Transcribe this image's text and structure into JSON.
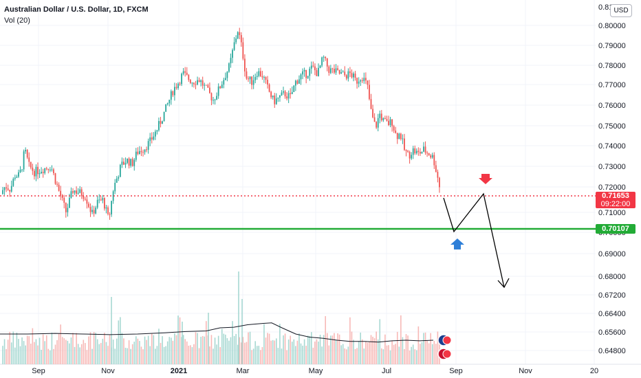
{
  "header": {
    "title": "Australian Dollar / U.S. Dollar, 1D, FXCM",
    "volume_label": "Vol (20)",
    "currency_badge": "USD"
  },
  "price_tags": {
    "last_price": "0.71653",
    "countdown": "09:22:00",
    "support": "0.70107"
  },
  "colors": {
    "up": "#26a69a",
    "down": "#ef5350",
    "support_line": "#22ab36",
    "last_price_line": "#f23645",
    "arrow_down": "#f23645",
    "arrow_up": "#2e7fd8",
    "volume_ma": "#131722",
    "projection": "#000000"
  },
  "chart_data": {
    "type": "candlestick",
    "title": "Australian Dollar / U.S. Dollar, 1D, FXCM",
    "y_axis": {
      "ticks": [
        "0.80000",
        "0.79000",
        "0.78000",
        "0.77000",
        "0.76000",
        "0.75000",
        "0.74000",
        "0.73000",
        "0.72000",
        "0.71000",
        "0.70000",
        "0.69000",
        "0.68000",
        "0.67200",
        "0.66400",
        "0.65600",
        "0.64800"
      ],
      "top_label": "0.81"
    },
    "x_axis": {
      "ticks": [
        {
          "label": "Sep",
          "bold": false
        },
        {
          "label": "Nov",
          "bold": false
        },
        {
          "label": "2021",
          "bold": true
        },
        {
          "label": "Mar",
          "bold": false
        },
        {
          "label": "May",
          "bold": false
        },
        {
          "label": "Jul",
          "bold": false
        },
        {
          "label": "Sep",
          "bold": false
        },
        {
          "label": "Nov",
          "bold": false
        },
        {
          "label": "20",
          "bold": false
        }
      ]
    },
    "levels": {
      "last_price": 0.71653,
      "support": 0.70107
    },
    "price_path": [
      [
        0,
        0.716
      ],
      [
        8,
        0.72
      ],
      [
        15,
        0.7185
      ],
      [
        22,
        0.7255
      ],
      [
        28,
        0.725
      ],
      [
        32,
        0.73
      ],
      [
        36,
        0.738
      ],
      [
        42,
        0.73
      ],
      [
        50,
        0.727
      ],
      [
        58,
        0.728
      ],
      [
        66,
        0.729
      ],
      [
        74,
        0.73
      ],
      [
        86,
        0.717
      ],
      [
        96,
        0.707
      ],
      [
        106,
        0.718
      ],
      [
        114,
        0.717
      ],
      [
        124,
        0.715
      ],
      [
        134,
        0.706
      ],
      [
        142,
        0.712
      ],
      [
        150,
        0.713
      ],
      [
        158,
        0.703
      ],
      [
        165,
        0.719
      ],
      [
        176,
        0.73
      ],
      [
        184,
        0.733
      ],
      [
        192,
        0.731
      ],
      [
        200,
        0.737
      ],
      [
        210,
        0.739
      ],
      [
        218,
        0.742
      ],
      [
        228,
        0.748
      ],
      [
        236,
        0.754
      ],
      [
        244,
        0.761
      ],
      [
        252,
        0.768
      ],
      [
        260,
        0.772
      ],
      [
        266,
        0.776
      ],
      [
        272,
        0.774
      ],
      [
        280,
        0.772
      ],
      [
        290,
        0.773
      ],
      [
        300,
        0.768
      ],
      [
        310,
        0.763
      ],
      [
        318,
        0.768
      ],
      [
        326,
        0.774
      ],
      [
        334,
        0.78
      ],
      [
        340,
        0.79
      ],
      [
        346,
        0.798
      ],
      [
        352,
        0.788
      ],
      [
        358,
        0.774
      ],
      [
        366,
        0.772
      ],
      [
        374,
        0.777
      ],
      [
        382,
        0.775
      ],
      [
        390,
        0.768
      ],
      [
        398,
        0.762
      ],
      [
        406,
        0.764
      ],
      [
        414,
        0.766
      ],
      [
        422,
        0.764
      ],
      [
        430,
        0.772
      ],
      [
        438,
        0.775
      ],
      [
        446,
        0.776
      ],
      [
        454,
        0.779
      ],
      [
        462,
        0.776
      ],
      [
        470,
        0.784
      ],
      [
        478,
        0.778
      ],
      [
        486,
        0.777
      ],
      [
        494,
        0.776
      ],
      [
        502,
        0.775
      ],
      [
        510,
        0.776
      ],
      [
        518,
        0.772
      ],
      [
        526,
        0.775
      ],
      [
        534,
        0.77
      ],
      [
        540,
        0.756
      ],
      [
        546,
        0.749
      ],
      [
        552,
        0.756
      ],
      [
        558,
        0.752
      ],
      [
        564,
        0.751
      ],
      [
        570,
        0.752
      ],
      [
        576,
        0.745
      ],
      [
        582,
        0.746
      ],
      [
        588,
        0.738
      ],
      [
        594,
        0.735
      ],
      [
        600,
        0.738
      ],
      [
        608,
        0.736
      ],
      [
        616,
        0.738
      ],
      [
        624,
        0.736
      ],
      [
        630,
        0.734
      ],
      [
        636,
        0.725
      ],
      [
        641,
        0.7165
      ]
    ],
    "projection_path": [
      [
        0.71653,
        0
      ],
      [
        0.70107,
        15
      ],
      [
        0.718,
        40
      ],
      [
        0.6775,
        60
      ]
    ],
    "volume_ma": [
      [
        0,
        0.45
      ],
      [
        40,
        0.45
      ],
      [
        80,
        0.46
      ],
      [
        120,
        0.45
      ],
      [
        160,
        0.44
      ],
      [
        200,
        0.45
      ],
      [
        240,
        0.47
      ],
      [
        270,
        0.49
      ],
      [
        300,
        0.5
      ],
      [
        320,
        0.55
      ],
      [
        340,
        0.56
      ],
      [
        360,
        0.6
      ],
      [
        380,
        0.62
      ],
      [
        395,
        0.63
      ],
      [
        410,
        0.55
      ],
      [
        430,
        0.45
      ],
      [
        450,
        0.4
      ],
      [
        470,
        0.38
      ],
      [
        490,
        0.35
      ],
      [
        510,
        0.33
      ],
      [
        530,
        0.33
      ],
      [
        550,
        0.32
      ],
      [
        570,
        0.34
      ],
      [
        590,
        0.35
      ],
      [
        610,
        0.34
      ],
      [
        630,
        0.35
      ]
    ]
  }
}
